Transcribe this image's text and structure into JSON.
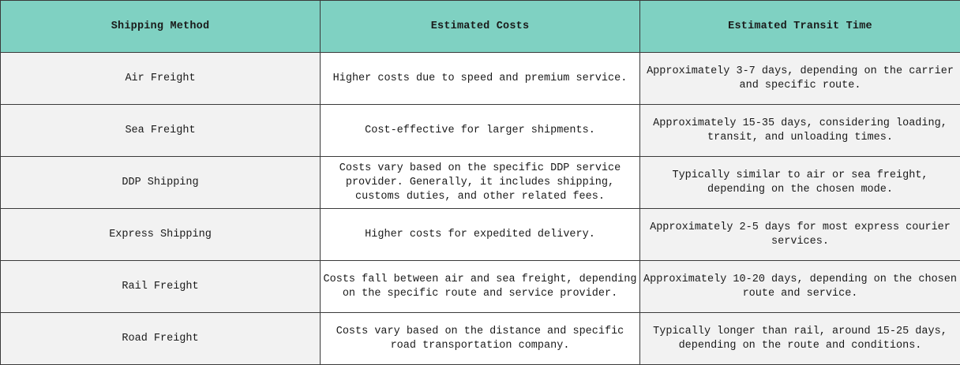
{
  "table": {
    "headers": [
      "Shipping Method",
      "Estimated Costs",
      "Estimated Transit Time"
    ],
    "rows": [
      {
        "method": "Air Freight",
        "cost": "Higher costs due to speed and premium service.",
        "transit": "Approximately 3-7 days, depending on the carrier and specific route."
      },
      {
        "method": "Sea Freight",
        "cost": "Cost-effective for larger shipments.",
        "transit": "Approximately 15-35 days, considering loading, transit, and unloading times."
      },
      {
        "method": "DDP Shipping",
        "cost": "Costs vary based on the specific DDP service provider. Generally, it includes shipping, customs duties, and other related fees.",
        "transit": "Typically similar to air or sea freight, depending on the chosen mode."
      },
      {
        "method": "Express Shipping",
        "cost": "Higher costs for expedited delivery.",
        "transit": "Approximately 2-5 days for most express courier services."
      },
      {
        "method": "Rail Freight",
        "cost": "Costs fall between air and sea freight, depending on the specific route and service provider.",
        "transit": "Approximately 10-20 days, depending on the chosen route and service."
      },
      {
        "method": "Road Freight",
        "cost": "Costs vary based on the distance and specific road transportation company.",
        "transit": "Typically longer than rail, around 15-25 days, depending on the route and conditions."
      }
    ]
  },
  "colors": {
    "header_bg": "#7fd1c2",
    "shaded_cell_bg": "#f2f2f2",
    "border": "#3a3a3a"
  }
}
